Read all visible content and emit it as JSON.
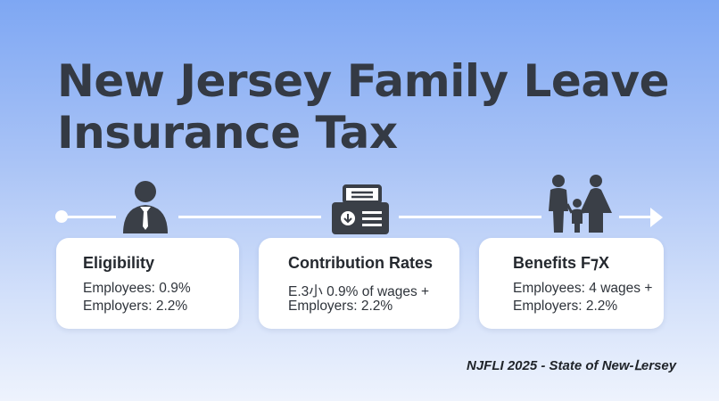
{
  "title": {
    "line1": "New Jersey Family Leave",
    "line2": "Insurance Tax"
  },
  "icons": [
    "person-icon",
    "calculator-icon",
    "family-icon"
  ],
  "cards": [
    {
      "heading": "Eligibility",
      "line1": "Employees: 0.9%",
      "line2": "Employers: 2.2%"
    },
    {
      "heading": "Contribution Rates",
      "line1": "E.3小 0.9% of wages +",
      "line2": "Employers: 2.2%"
    },
    {
      "heading": "Benefits F⁊X",
      "line1": "Employees: 4 wages +",
      "line2": "Employers: 2.2%"
    }
  ],
  "footer": "NJFLI 2025 - State of New-Ⅼersey",
  "colors": {
    "background_top": "#7ea7f3",
    "background_bottom": "#eef3fd",
    "icon": "#3a3f47",
    "title": "#343a44"
  }
}
